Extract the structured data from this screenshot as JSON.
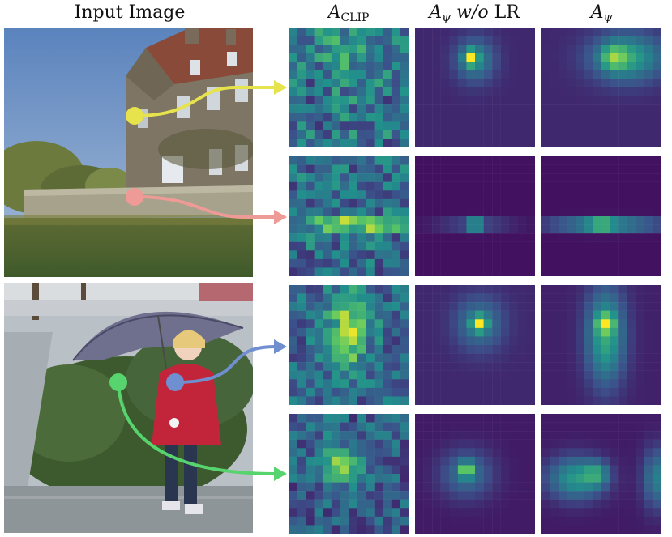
{
  "columns": {
    "input": "Input Image",
    "clip_main": "A",
    "clip_sub": "CLIP",
    "wolr_main": "A",
    "wolr_sub": "ψ",
    "wolr_suffix_it": "w/o",
    "wolr_suffix": "LR",
    "psi_main": "A",
    "psi_sub": "ψ"
  },
  "colors": {
    "yellow_point": "#e6e34c",
    "pink_point": "#ee9a96",
    "blue_point": "#6f8fd1",
    "green_point": "#58d46f",
    "colormap": "viridis"
  },
  "heatmaps": [
    {
      "row": 1,
      "point": "yellow",
      "columns": [
        "clip",
        "wolr",
        "psi"
      ]
    },
    {
      "row": 2,
      "point": "pink",
      "columns": [
        "clip",
        "wolr",
        "psi"
      ]
    },
    {
      "row": 3,
      "point": "blue",
      "columns": [
        "clip",
        "wolr",
        "psi"
      ]
    },
    {
      "row": 4,
      "point": "green",
      "columns": [
        "clip",
        "wolr",
        "psi"
      ]
    }
  ]
}
